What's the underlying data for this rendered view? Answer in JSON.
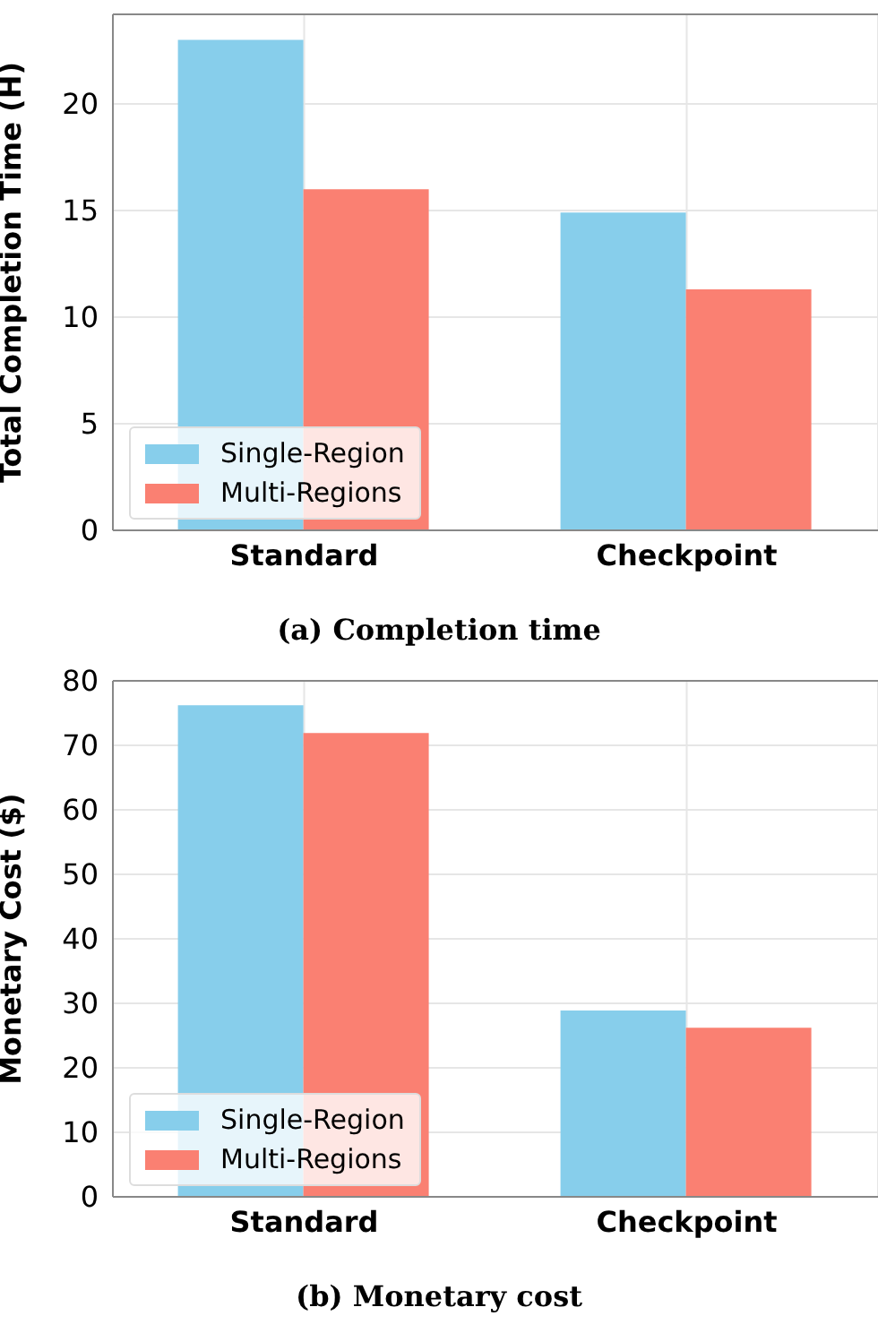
{
  "chart_data": [
    {
      "type": "bar",
      "title": "(a) Completion time",
      "ylabel": "Total Completion Time (H)",
      "categories": [
        "Standard",
        "Checkpoint"
      ],
      "series": [
        {
          "name": "Single-Region",
          "color": "#87ceeb",
          "values": [
            23,
            14.9
          ]
        },
        {
          "name": "Multi-Regions",
          "color": "#fa8072",
          "values": [
            16,
            11.3
          ]
        }
      ],
      "ylim": [
        0,
        24.2
      ],
      "yticks": [
        0,
        5,
        10,
        15,
        20
      ],
      "grid": true,
      "legend": "bottom left"
    },
    {
      "type": "bar",
      "title": "(b) Monetary cost",
      "ylabel": "Monetary Cost ($)",
      "categories": [
        "Standard",
        "Checkpoint"
      ],
      "series": [
        {
          "name": "Single-Region",
          "color": "#87ceeb",
          "values": [
            76.2,
            28.9
          ]
        },
        {
          "name": "Multi-Regions",
          "color": "#fa8072",
          "values": [
            71.9,
            26.2
          ]
        }
      ],
      "ylim": [
        0,
        80
      ],
      "yticks": [
        0,
        10,
        20,
        30,
        40,
        50,
        60,
        70,
        80
      ],
      "grid": true,
      "legend": "bottom left"
    }
  ]
}
